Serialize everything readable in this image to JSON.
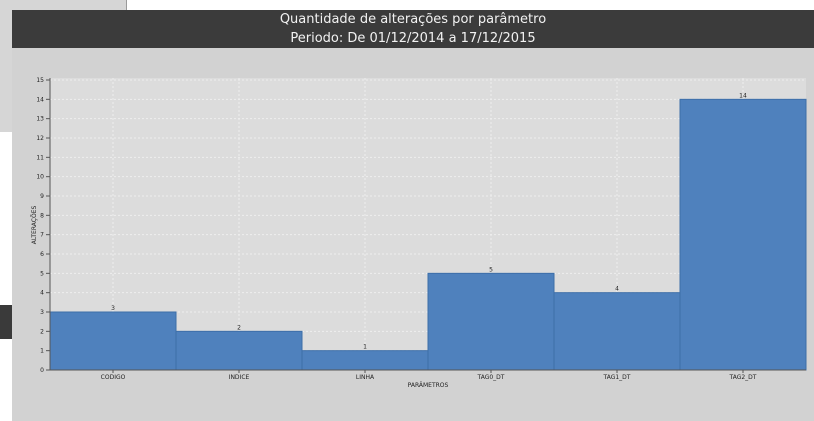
{
  "header": {
    "title": "Quantidade de alterações por parâmetro",
    "subtitle": "Periodo: De 01/12/2014 a 17/12/2015"
  },
  "colors": {
    "bar": "#4f81bd",
    "bar_stroke": "#3d6ea8",
    "plot_bg": "#dcdcdc",
    "header_bg": "#3b3b3b"
  },
  "chart_data": {
    "type": "bar",
    "title": "Quantidade de alterações por parâmetro",
    "subtitle": "Periodo: De 01/12/2014 a 17/12/2015",
    "xlabel": "PARÂMETROS",
    "ylabel": "ALTERAÇÕES",
    "categories": [
      "CODIGO",
      "INDICE",
      "LINHA",
      "TAG0_DT",
      "TAG1_DT",
      "TAG2_DT"
    ],
    "values": [
      3,
      2,
      1,
      5,
      4,
      14
    ],
    "ylim": [
      0,
      15
    ],
    "yticks": [
      0,
      1,
      2,
      3,
      4,
      5,
      6,
      7,
      8,
      9,
      10,
      11,
      12,
      13,
      14,
      15
    ],
    "grid": true,
    "legend": "none"
  }
}
